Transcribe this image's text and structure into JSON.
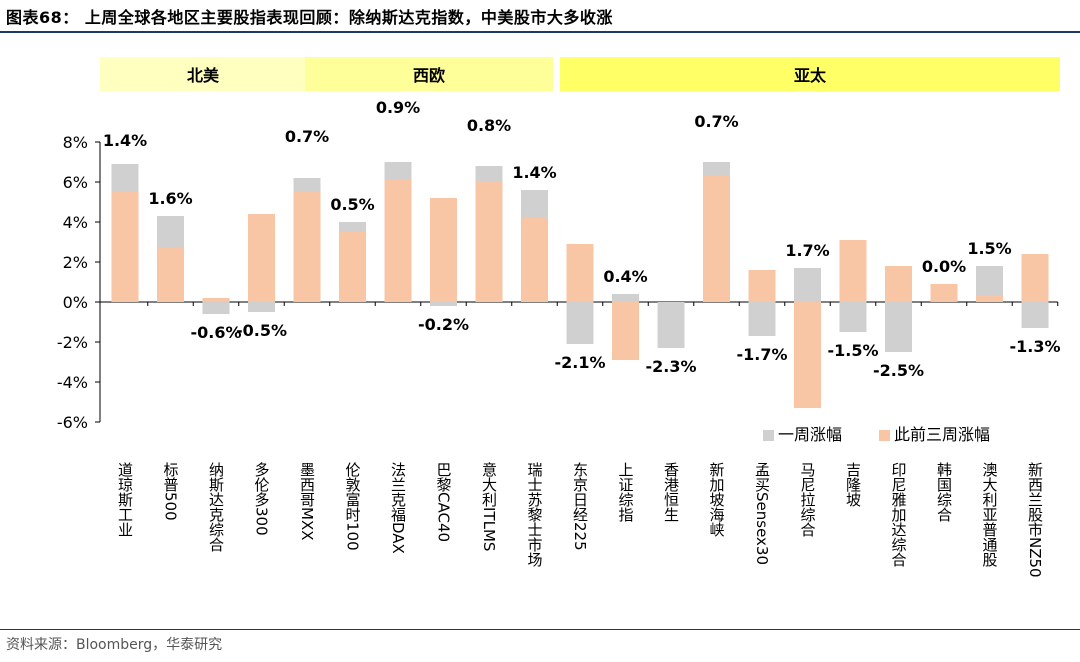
{
  "title": "图表68：   上周全球各地区主要股指表现回顾：除纳斯达克指数，中美股市大多收涨",
  "footer": "资料来源：Bloomberg，华泰研究",
  "regions": [
    {
      "label": "北美",
      "color": "#ffffc0"
    },
    {
      "label": "西欧",
      "color": "#ffff99"
    },
    {
      "label": "亚太",
      "color": "#ffff66"
    }
  ],
  "colors": {
    "week": "#d0d0d0",
    "prior": "#f8c6a4",
    "axis": "#000000"
  },
  "chart_data": {
    "type": "bar",
    "categories": [
      "道琼斯工业",
      "标普500",
      "纳斯达克综合",
      "多伦多300",
      "墨西哥MXX",
      "伦敦富时100",
      "法兰克福DAX",
      "巴黎CAC40",
      "意大利ITLMS",
      "瑞士苏黎士市场",
      "东京日经225",
      "上证综指",
      "香港恒生",
      "新加坡海峡",
      "孟买Sensex30",
      "马尼拉综合",
      "吉隆坡",
      "印尼雅加达综合",
      "韩国综合",
      "澳大利亚普通股",
      "新西兰股市NZ50"
    ],
    "series": [
      {
        "name": "一周涨幅",
        "values": [
          1.4,
          1.6,
          -0.6,
          -0.5,
          0.7,
          0.5,
          0.9,
          -0.2,
          0.8,
          1.4,
          -2.1,
          0.4,
          -2.3,
          0.7,
          -1.7,
          1.7,
          -1.5,
          -2.5,
          0.0,
          1.5,
          -1.3
        ]
      },
      {
        "name": "此前三周涨幅",
        "values": [
          5.5,
          2.7,
          0.2,
          4.4,
          5.5,
          3.5,
          6.1,
          5.2,
          6.0,
          4.2,
          2.9,
          -2.9,
          0.0,
          6.3,
          1.6,
          -5.3,
          3.1,
          1.8,
          0.9,
          0.3,
          2.4
        ]
      }
    ],
    "labels": [
      "1.4%",
      "1.6%",
      "-0.6%",
      "-0.5%",
      "0.7%",
      "0.5%",
      "0.9%",
      "-0.2%",
      "0.8%",
      "1.4%",
      "-2.1%",
      "0.4%",
      "-2.3%",
      "0.7%",
      "-1.7%",
      "1.7%",
      "-1.5%",
      "-2.5%",
      "0.0%",
      "1.5%",
      "-1.3%"
    ],
    "yticks": [
      "8%",
      "6%",
      "4%",
      "2%",
      "0%",
      "-2%",
      "-4%",
      "-6%"
    ],
    "ylim": [
      -6,
      8
    ],
    "legend_position": "bottom-right"
  }
}
